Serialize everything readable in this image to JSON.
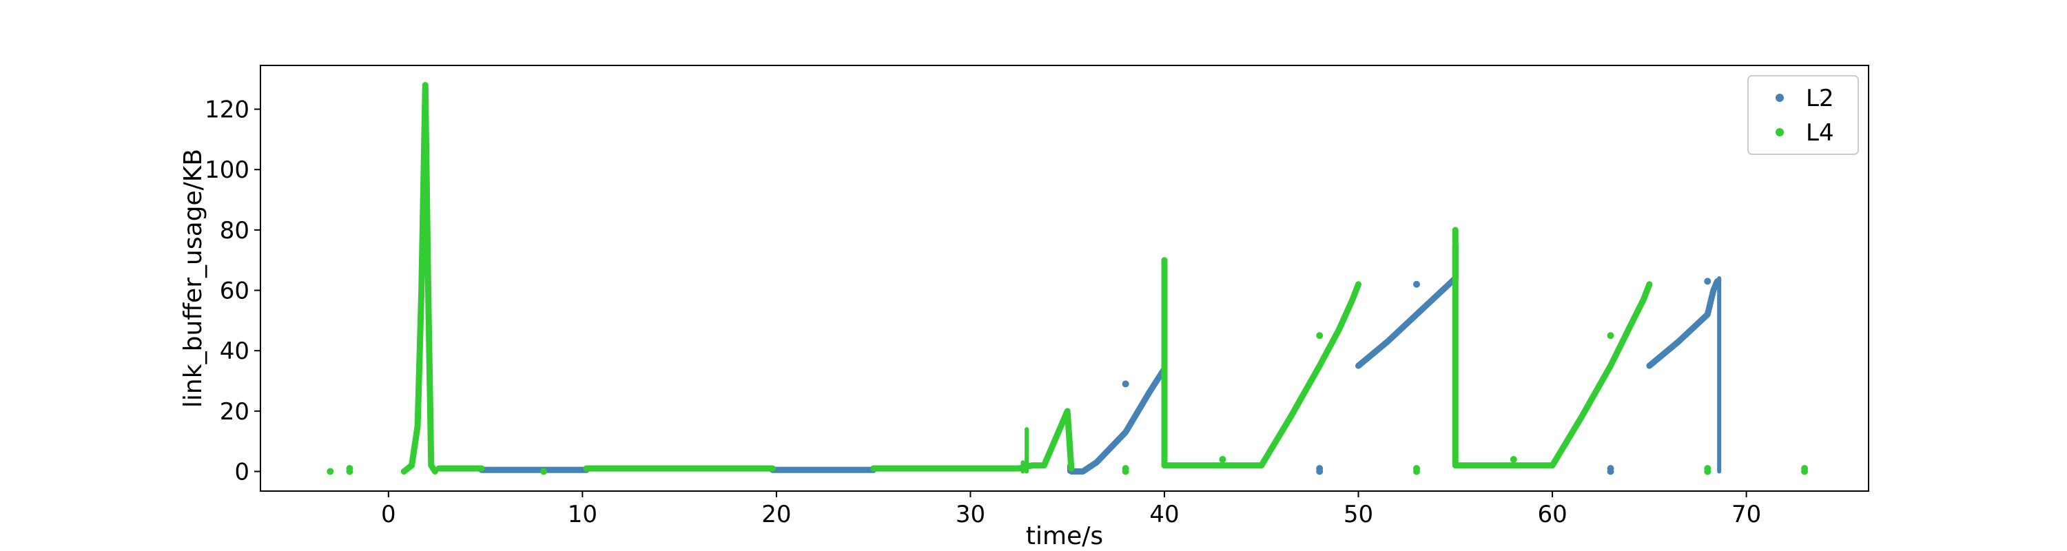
{
  "chart_data": {
    "type": "scatter",
    "xlabel": "time/s",
    "ylabel": "link_buffer_usage/KB",
    "xlim": [
      -6.6,
      76.3
    ],
    "ylim": [
      -6.5,
      134.5
    ],
    "xticks": [
      0,
      10,
      20,
      30,
      40,
      50,
      60,
      70
    ],
    "yticks": [
      0,
      20,
      40,
      60,
      80,
      100,
      120
    ],
    "grid": false,
    "legend_position": "top-right",
    "series": [
      {
        "name": "L2",
        "color": "#4682b4",
        "segments": [
          [
            [
              4.8,
              0.5
            ],
            [
              10.2,
              0.5
            ]
          ],
          [
            [
              19.8,
              0.5
            ],
            [
              25.0,
              0.5
            ]
          ],
          [
            [
              35.2,
              0
            ],
            [
              35.8,
              0
            ],
            [
              36.5,
              3
            ],
            [
              38,
              13
            ],
            [
              39.2,
              26
            ],
            [
              40.0,
              34
            ],
            [
              40.0,
              44
            ]
          ],
          [
            [
              50.0,
              35
            ],
            [
              51.5,
              43
            ],
            [
              53,
              52
            ],
            [
              54.5,
              61
            ],
            [
              55.0,
              64
            ],
            [
              55.0,
              75
            ]
          ],
          [
            [
              65.0,
              35
            ],
            [
              66.5,
              43
            ],
            [
              68.0,
              52
            ],
            [
              68.3,
              60
            ],
            [
              68.5,
              63
            ]
          ]
        ],
        "spikes": [
          [
            68.6,
            64
          ],
          [
            35.1,
            2
          ]
        ],
        "points": [
          [
            48,
            0
          ],
          [
            48,
            1
          ],
          [
            63,
            0
          ],
          [
            63,
            1
          ],
          [
            38,
            29
          ],
          [
            53,
            62
          ],
          [
            68,
            63
          ]
        ]
      },
      {
        "name": "L4",
        "color": "#33cc33",
        "segments": [
          [
            [
              0.8,
              0
            ],
            [
              1.2,
              2
            ],
            [
              1.5,
              15
            ],
            [
              1.7,
              60
            ],
            [
              1.9,
              128
            ],
            [
              2.05,
              60
            ],
            [
              2.2,
              2
            ],
            [
              2.4,
              0
            ]
          ],
          [
            [
              2.6,
              1
            ],
            [
              4.8,
              1
            ]
          ],
          [
            [
              10.2,
              1
            ],
            [
              19.8,
              1
            ]
          ],
          [
            [
              25.0,
              1
            ],
            [
              32.5,
              1
            ],
            [
              33.2,
              2
            ],
            [
              33.8,
              2
            ],
            [
              35.0,
              20
            ],
            [
              35.2,
              1
            ]
          ],
          [
            [
              40.0,
              70
            ],
            [
              40.0,
              2
            ],
            [
              45.0,
              2
            ],
            [
              46.5,
              18
            ],
            [
              48,
              35
            ],
            [
              49,
              47
            ],
            [
              49.7,
              57
            ],
            [
              50.0,
              62
            ]
          ],
          [
            [
              55.0,
              80
            ],
            [
              55.0,
              2
            ],
            [
              60.0,
              2
            ],
            [
              61.5,
              18
            ],
            [
              63,
              35
            ],
            [
              64,
              48
            ],
            [
              64.7,
              57
            ],
            [
              65.0,
              62
            ]
          ]
        ],
        "spikes": [
          [
            32.9,
            14
          ],
          [
            32.7,
            3
          ]
        ],
        "points": [
          [
            -3,
            0
          ],
          [
            -2,
            0
          ],
          [
            -2,
            1
          ],
          [
            8,
            0
          ],
          [
            38,
            0
          ],
          [
            38,
            1
          ],
          [
            43,
            4
          ],
          [
            53,
            0
          ],
          [
            53,
            1
          ],
          [
            58,
            4
          ],
          [
            68,
            0
          ],
          [
            68,
            1
          ],
          [
            73,
            0
          ],
          [
            73,
            1
          ],
          [
            48,
            45
          ],
          [
            63,
            45
          ]
        ]
      }
    ]
  }
}
